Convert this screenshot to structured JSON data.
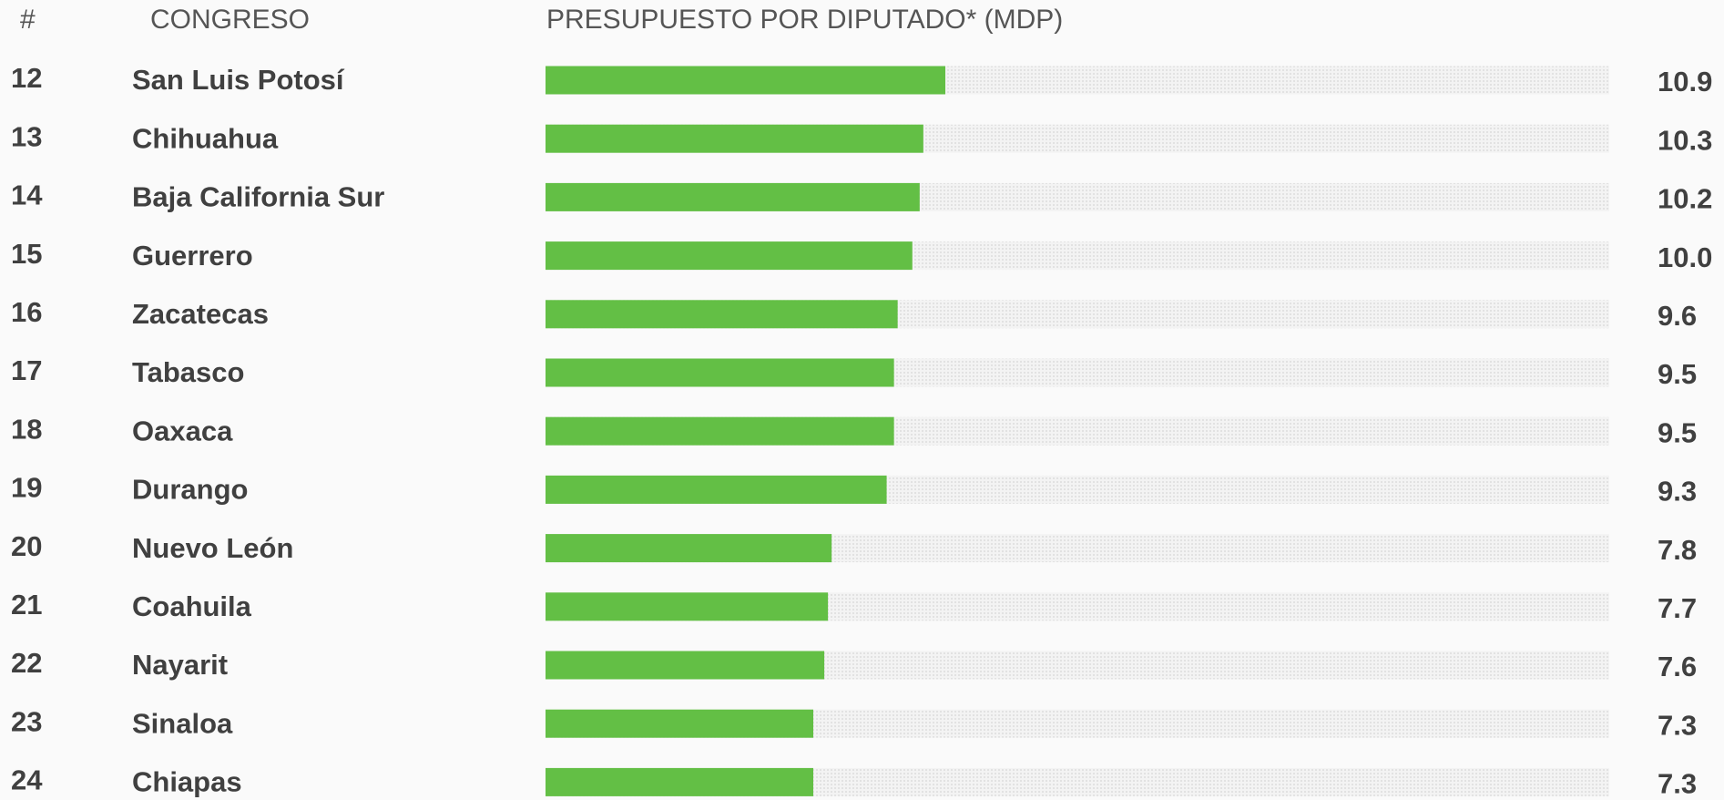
{
  "chart_data": {
    "type": "bar",
    "orientation": "horizontal",
    "rank_header": "#",
    "category_header": "CONGRESO",
    "title": "PRESUPUESTO POR DIPUTADO* (MDP)",
    "ranks": [
      12,
      13,
      14,
      15,
      16,
      17,
      18,
      19,
      20,
      21,
      22,
      23,
      24
    ],
    "categories": [
      "San Luis Potosí",
      "Chihuahua",
      "Baja California Sur",
      "Guerrero",
      "Zacatecas",
      "Tabasco",
      "Oaxaca",
      "Durango",
      "Nuevo León",
      "Coahuila",
      "Nayarit",
      "Sinaloa",
      "Chiapas"
    ],
    "values": [
      10.9,
      10.3,
      10.2,
      10.0,
      9.6,
      9.5,
      9.5,
      9.3,
      7.8,
      7.7,
      7.6,
      7.3,
      7.3
    ],
    "value_labels": [
      "10.9",
      "10.3",
      "10.2",
      "10.0",
      "9.6",
      "9.5",
      "9.5",
      "9.3",
      "7.8",
      "7.7",
      "7.6",
      "7.3",
      "7.3"
    ],
    "color": "#63bf45",
    "xlim": [
      0,
      29
    ]
  }
}
